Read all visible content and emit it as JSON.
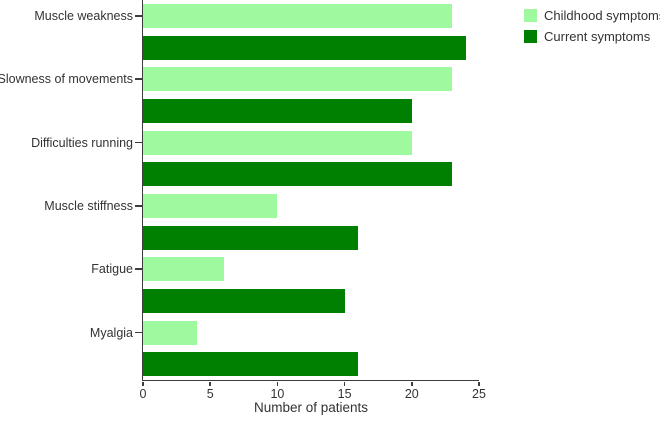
{
  "chart_data": {
    "type": "bar",
    "orientation": "horizontal",
    "title": "",
    "xlabel": "Number of patients",
    "ylabel": "",
    "categories": [
      "Muscle weakness",
      "Slowness of movements",
      "Difficulties running",
      "Muscle stiffness",
      "Fatigue",
      "Myalgia"
    ],
    "series": [
      {
        "name": "Childhood symptoms",
        "color": "#9ffa9f",
        "values": [
          23,
          23,
          20,
          10,
          6,
          4
        ]
      },
      {
        "name": "Current symptoms",
        "color": "#008000",
        "values": [
          24,
          20,
          23,
          16,
          15,
          16
        ]
      }
    ],
    "xlim": [
      0,
      25
    ],
    "xticks": [
      0,
      5,
      10,
      15,
      20,
      25
    ],
    "grid": false,
    "legend_position": "top-right",
    "axis_color": "#3d3d3d",
    "text_color": "#333333",
    "background_color": "#ffffff"
  }
}
